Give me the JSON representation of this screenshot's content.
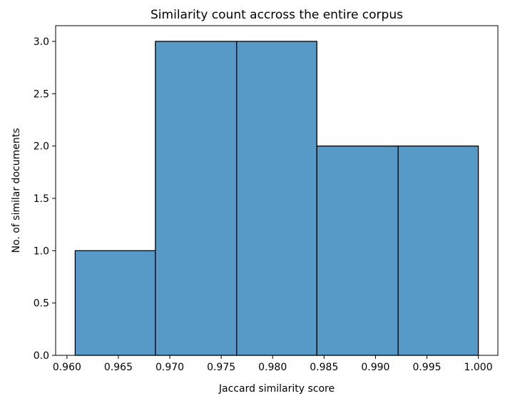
{
  "chart_data": {
    "type": "bar",
    "title": "Similarity count accross the entire corpus",
    "xlabel": "Jaccard similarity score",
    "ylabel": "No. of similar documents",
    "bins": [
      {
        "start": 0.9608,
        "end": 0.9686,
        "count": 1
      },
      {
        "start": 0.9686,
        "end": 0.9765,
        "count": 3
      },
      {
        "start": 0.9765,
        "end": 0.9843,
        "count": 3
      },
      {
        "start": 0.9843,
        "end": 0.9922,
        "count": 2
      },
      {
        "start": 0.9922,
        "end": 1.0,
        "count": 2
      }
    ],
    "xlim": [
      0.9589,
      1.0019
    ],
    "ylim": [
      0,
      3.15
    ],
    "xticks": [
      "0.960",
      "0.965",
      "0.970",
      "0.975",
      "0.980",
      "0.985",
      "0.990",
      "0.995",
      "1.000"
    ],
    "xtick_values": [
      0.96,
      0.965,
      0.97,
      0.975,
      0.98,
      0.985,
      0.99,
      0.995,
      1.0
    ],
    "yticks": [
      "0.0",
      "0.5",
      "1.0",
      "1.5",
      "2.0",
      "2.5",
      "3.0"
    ],
    "ytick_values": [
      0,
      0.5,
      1.0,
      1.5,
      2.0,
      2.5,
      3.0
    ],
    "bar_color": "#5799c7",
    "edge_color": "#000000",
    "grid": false
  }
}
